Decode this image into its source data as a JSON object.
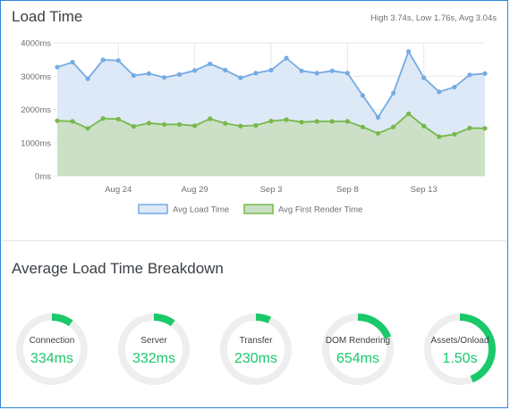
{
  "load_time": {
    "title": "Load Time",
    "stats": "High 3.74s, Low 1.76s, Avg 3.04s"
  },
  "breakdown": {
    "title": "Average Load Time Breakdown",
    "items": [
      {
        "label": "Connection",
        "value": "334ms",
        "fraction": 0.1
      },
      {
        "label": "Server",
        "value": "332ms",
        "fraction": 0.1
      },
      {
        "label": "Transfer",
        "value": "230ms",
        "fraction": 0.07
      },
      {
        "label": "DOM Rendering",
        "value": "654ms",
        "fraction": 0.19
      },
      {
        "label": "Assets/Onload",
        "value": "1.50s",
        "fraction": 0.44
      }
    ],
    "colors": {
      "track": "#eeeeee",
      "arc": "#19c96a",
      "value": "#19c96a"
    }
  },
  "chart_data": {
    "type": "area",
    "ylim": [
      0,
      4000
    ],
    "y_ticks": [
      0,
      1000,
      2000,
      3000,
      4000
    ],
    "y_tick_labels": [
      "0ms",
      "1000ms",
      "2000ms",
      "3000ms",
      "4000ms"
    ],
    "x_tick_labels": [
      {
        "index": 4,
        "label": "Aug 24"
      },
      {
        "index": 9,
        "label": "Aug 29"
      },
      {
        "index": 14,
        "label": "Sep 3"
      },
      {
        "index": 19,
        "label": "Sep 8"
      },
      {
        "index": 24,
        "label": "Sep 13"
      }
    ],
    "grid": true,
    "legend_position": "bottom-center",
    "series": [
      {
        "name": "Avg Load Time",
        "color": "#74abe3",
        "fill": "#dde9f7",
        "values": [
          3270,
          3420,
          2920,
          3490,
          3470,
          3020,
          3080,
          2960,
          3050,
          3170,
          3370,
          3180,
          2950,
          3090,
          3180,
          3540,
          3160,
          3090,
          3160,
          3090,
          2420,
          1760,
          2490,
          3740,
          2950,
          2530,
          2670,
          3040,
          3080
        ]
      },
      {
        "name": "Avg First Render Time",
        "color": "#78b84a",
        "fill": "#c9dfc4",
        "values": [
          1660,
          1640,
          1430,
          1730,
          1710,
          1490,
          1590,
          1550,
          1550,
          1510,
          1720,
          1580,
          1500,
          1520,
          1650,
          1690,
          1620,
          1640,
          1640,
          1640,
          1470,
          1280,
          1470,
          1870,
          1500,
          1180,
          1250,
          1440,
          1430
        ]
      }
    ]
  }
}
